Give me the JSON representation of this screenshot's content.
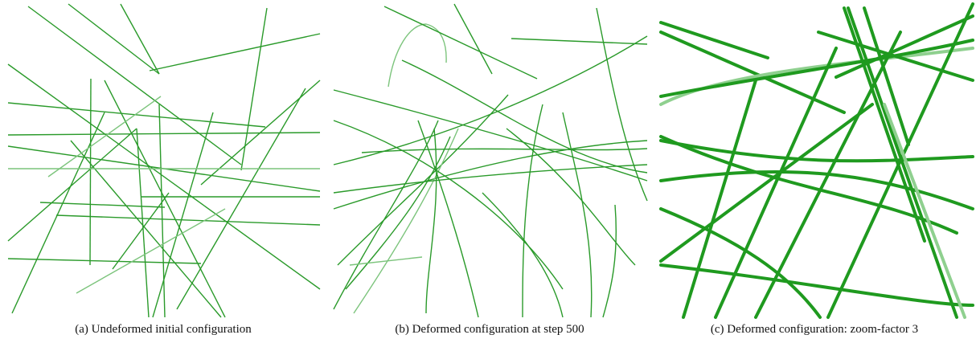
{
  "figure": {
    "captions": [
      "(a)  Undeformed initial configuration",
      "(b)  Deformed configuration at step 500",
      "(c)  Deformed configuration: zoom-factor 3"
    ]
  }
}
